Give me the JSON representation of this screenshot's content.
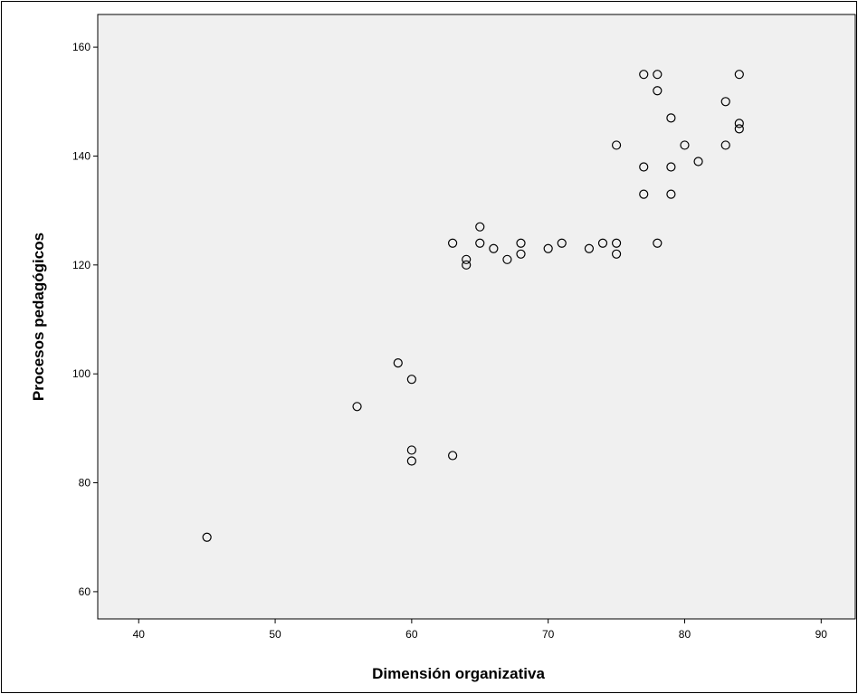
{
  "chart_data": {
    "type": "scatter",
    "title": "",
    "xlabel": "Dimensión organizativa",
    "ylabel": "Procesos pedagógicos",
    "xlim": [
      37,
      92.5
    ],
    "ylim": [
      55,
      166
    ],
    "xticks": [
      40,
      50,
      60,
      70,
      80,
      90
    ],
    "yticks": [
      60,
      80,
      100,
      120,
      140,
      160
    ],
    "grid": false,
    "legend": "none",
    "plot_background": "#f0f0f0",
    "marker_color": "#000000",
    "points": [
      [
        45,
        70
      ],
      [
        56,
        94
      ],
      [
        59,
        102
      ],
      [
        60,
        99
      ],
      [
        60,
        86
      ],
      [
        60,
        84
      ],
      [
        63,
        85
      ],
      [
        63,
        124
      ],
      [
        64,
        121
      ],
      [
        64,
        120
      ],
      [
        65,
        127
      ],
      [
        65,
        124
      ],
      [
        66,
        123
      ],
      [
        67,
        121
      ],
      [
        68,
        124
      ],
      [
        68,
        122
      ],
      [
        70,
        123
      ],
      [
        71,
        124
      ],
      [
        73,
        123
      ],
      [
        74,
        124
      ],
      [
        75,
        124
      ],
      [
        75,
        122
      ],
      [
        75,
        142
      ],
      [
        77,
        155
      ],
      [
        77,
        138
      ],
      [
        77,
        133
      ],
      [
        78,
        155
      ],
      [
        78,
        152
      ],
      [
        78,
        124
      ],
      [
        79,
        147
      ],
      [
        79,
        138
      ],
      [
        79,
        133
      ],
      [
        80,
        142
      ],
      [
        81,
        139
      ],
      [
        83,
        150
      ],
      [
        83,
        142
      ],
      [
        84,
        155
      ],
      [
        84,
        146
      ],
      [
        84,
        145
      ]
    ]
  }
}
